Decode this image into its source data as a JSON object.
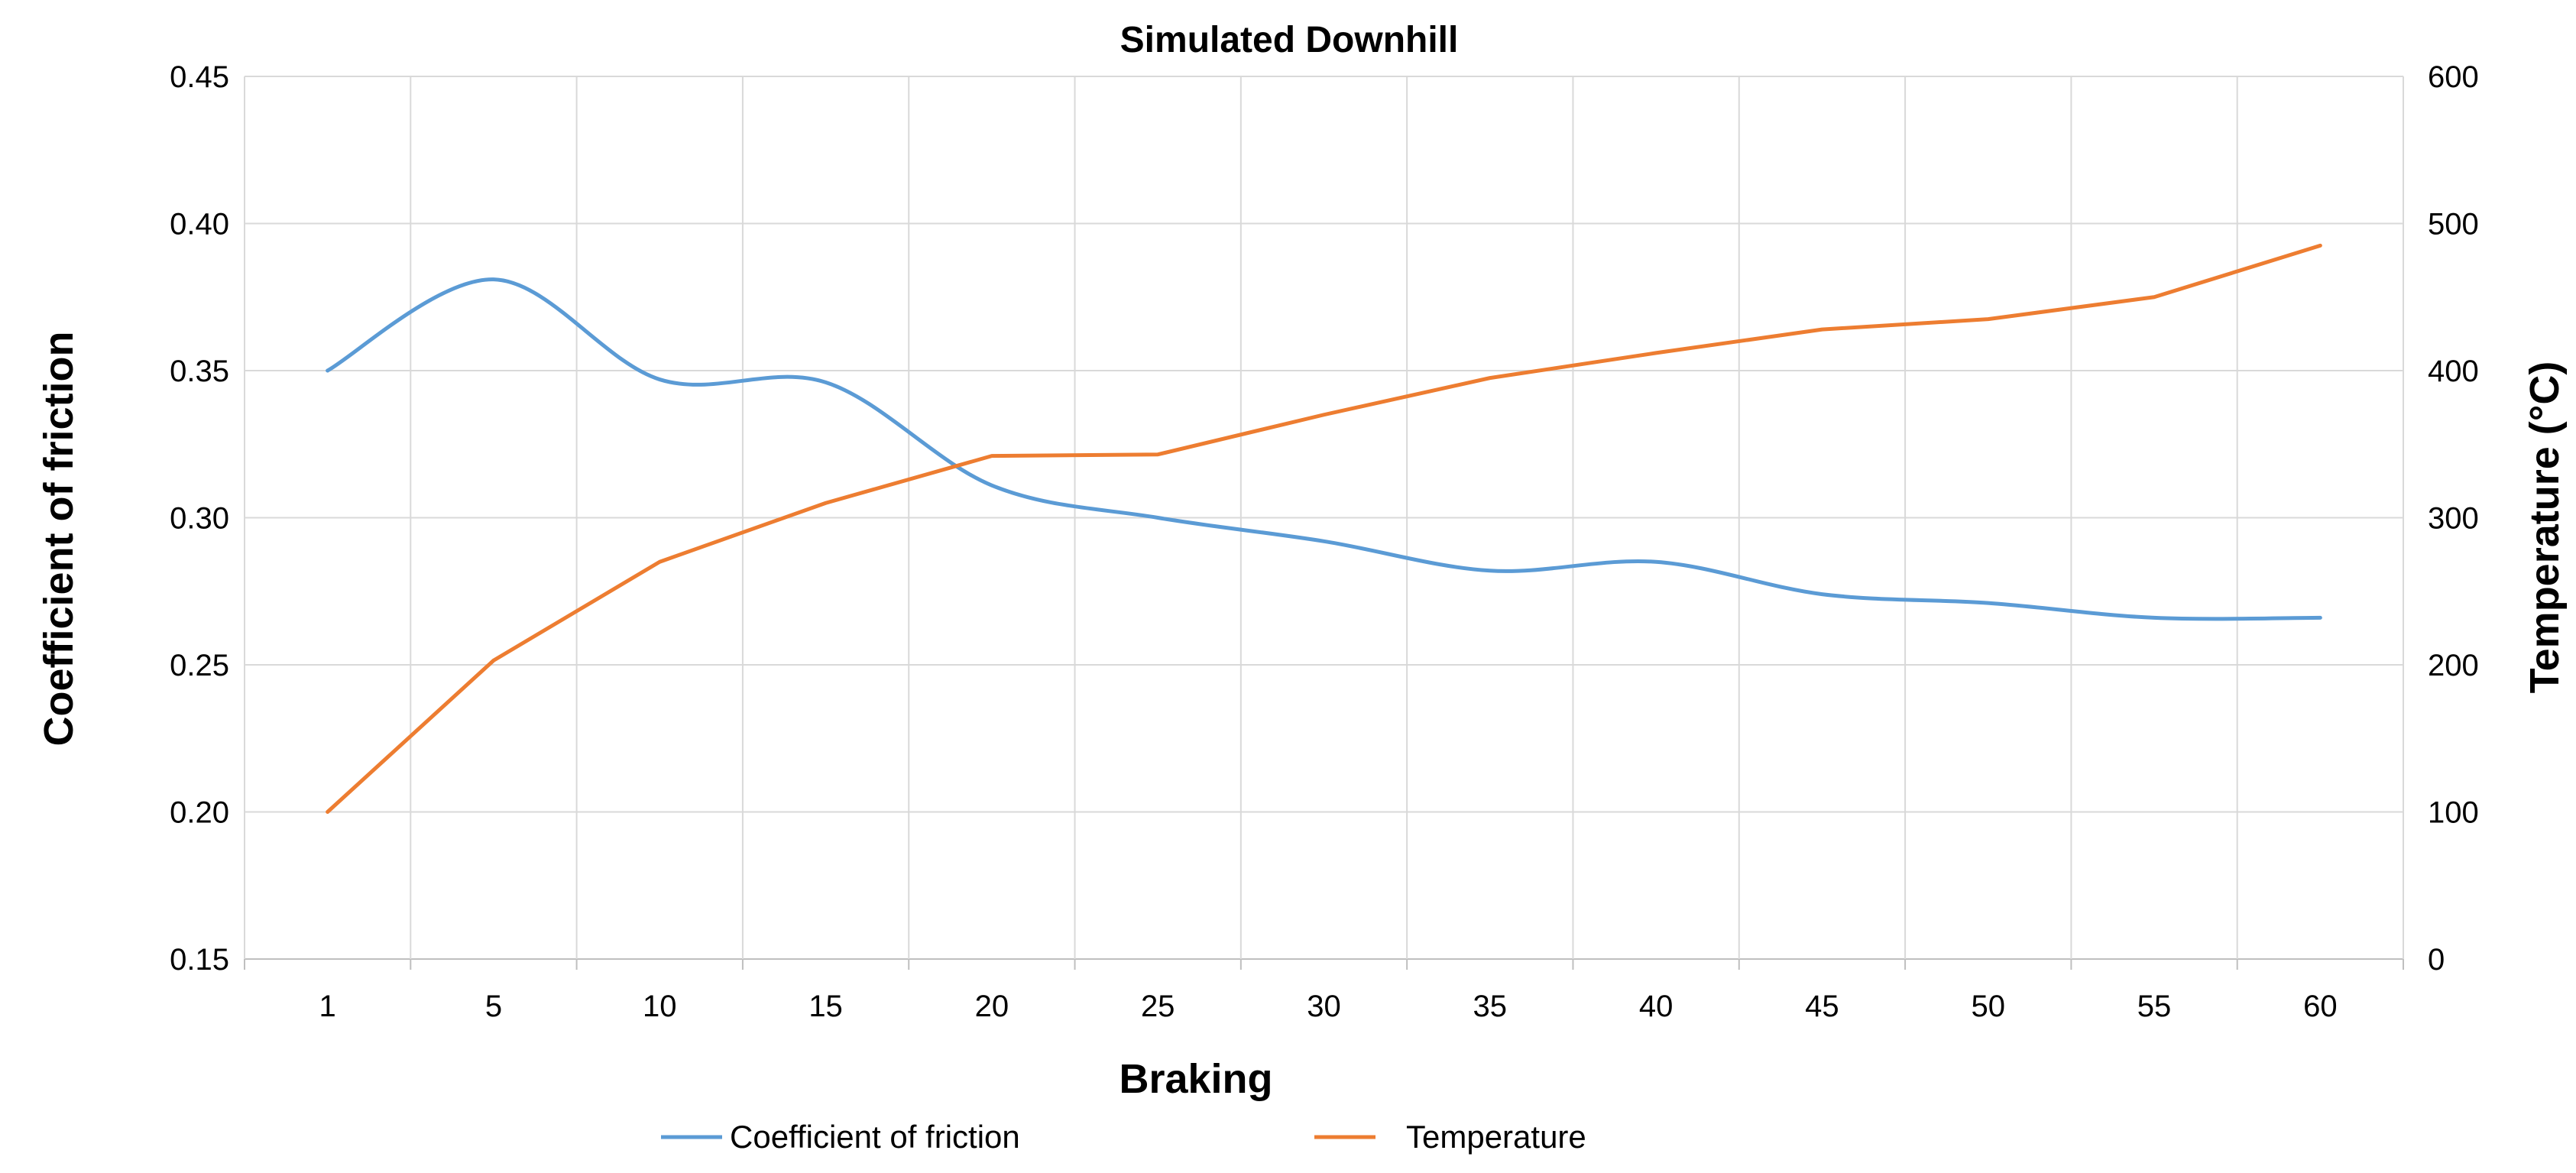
{
  "chart_data": {
    "type": "line",
    "title": "Simulated Downhill",
    "xlabel": "Braking",
    "ylabel": "Coefficient of friction",
    "y2label": "Temperature (°C)",
    "categories": [
      "1",
      "5",
      "10",
      "15",
      "20",
      "25",
      "30",
      "35",
      "40",
      "45",
      "50",
      "55",
      "60"
    ],
    "ylim": [
      0.15,
      0.45
    ],
    "y_ticks": [
      "0.15",
      "0.20",
      "0.25",
      "0.30",
      "0.35",
      "0.40",
      "0.45"
    ],
    "y2lim": [
      0,
      600
    ],
    "y2_ticks": [
      "0",
      "100",
      "200",
      "300",
      "400",
      "500",
      "600"
    ],
    "grid": true,
    "legend": "bottom",
    "series": [
      {
        "name": "Coefficient of friction",
        "axis": "left",
        "color": "#5b9bd5",
        "smooth": true,
        "values": [
          0.35,
          0.381,
          0.347,
          0.346,
          0.311,
          0.3,
          0.292,
          0.282,
          0.285,
          0.274,
          0.271,
          0.266,
          0.266
        ]
      },
      {
        "name": "Temperature",
        "axis": "right",
        "color": "#ed7d31",
        "smooth": false,
        "values": [
          100,
          203,
          270,
          310,
          342,
          343,
          370,
          395,
          412,
          428,
          435,
          450,
          485
        ]
      }
    ]
  }
}
